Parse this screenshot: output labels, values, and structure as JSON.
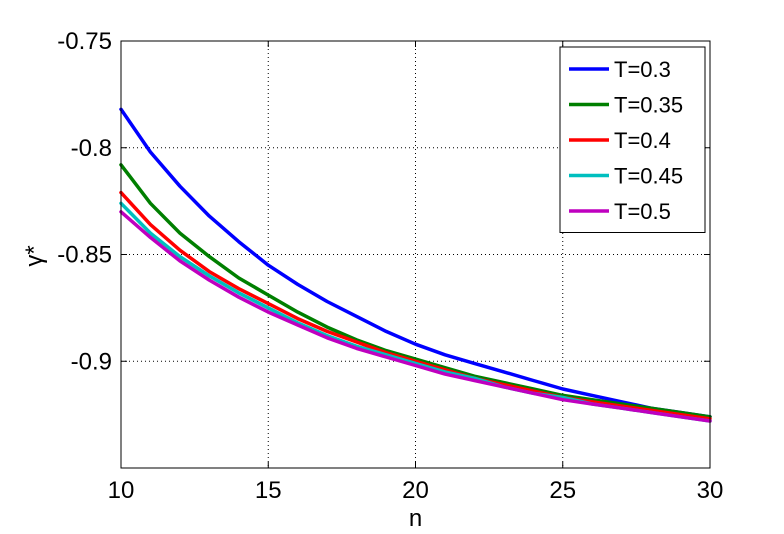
{
  "chart_data": {
    "type": "line",
    "xlabel": "n",
    "ylabel": "γ*",
    "xlim": [
      10,
      30
    ],
    "ylim": [
      -0.95,
      -0.75
    ],
    "x_ticks": [
      10,
      15,
      20,
      25,
      30
    ],
    "y_ticks": [
      -0.9,
      -0.85,
      -0.8,
      -0.75
    ],
    "x_tick_labels": [
      "10",
      "15",
      "20",
      "25",
      "30"
    ],
    "y_tick_labels": [
      "-0.9",
      "-0.85",
      "-0.8",
      "-0.75"
    ],
    "grid": true,
    "legend_position": "top-right",
    "x": [
      10,
      11,
      12,
      13,
      14,
      15,
      16,
      17,
      18,
      19,
      20,
      21,
      22,
      23,
      24,
      25,
      26,
      27,
      28,
      29,
      30
    ],
    "series": [
      {
        "name": "T=0.3",
        "color": "#0000ff",
        "values": [
          -0.782,
          -0.802,
          -0.818,
          -0.832,
          -0.844,
          -0.855,
          -0.864,
          -0.872,
          -0.879,
          -0.886,
          -0.892,
          -0.897,
          -0.901,
          -0.905,
          -0.909,
          -0.913,
          -0.916,
          -0.919,
          -0.922,
          -0.924,
          -0.926
        ]
      },
      {
        "name": "T=0.35",
        "color": "#007f00",
        "values": [
          -0.808,
          -0.826,
          -0.84,
          -0.851,
          -0.861,
          -0.869,
          -0.877,
          -0.884,
          -0.89,
          -0.895,
          -0.899,
          -0.903,
          -0.907,
          -0.91,
          -0.913,
          -0.916,
          -0.918,
          -0.92,
          -0.922,
          -0.924,
          -0.926
        ]
      },
      {
        "name": "T=0.4",
        "color": "#ff0000",
        "values": [
          -0.821,
          -0.836,
          -0.848,
          -0.858,
          -0.866,
          -0.873,
          -0.88,
          -0.886,
          -0.891,
          -0.896,
          -0.9,
          -0.904,
          -0.908,
          -0.911,
          -0.914,
          -0.917,
          -0.919,
          -0.921,
          -0.923,
          -0.925,
          -0.927
        ]
      },
      {
        "name": "T=0.45",
        "color": "#00bfbf",
        "values": [
          -0.826,
          -0.84,
          -0.851,
          -0.86,
          -0.868,
          -0.875,
          -0.882,
          -0.888,
          -0.893,
          -0.897,
          -0.901,
          -0.905,
          -0.908,
          -0.912,
          -0.915,
          -0.917,
          -0.92,
          -0.922,
          -0.924,
          -0.926,
          -0.928
        ]
      },
      {
        "name": "T=0.5",
        "color": "#bf00bf",
        "values": [
          -0.83,
          -0.842,
          -0.853,
          -0.862,
          -0.87,
          -0.877,
          -0.883,
          -0.889,
          -0.894,
          -0.898,
          -0.902,
          -0.906,
          -0.909,
          -0.912,
          -0.915,
          -0.918,
          -0.92,
          -0.922,
          -0.924,
          -0.926,
          -0.928
        ]
      }
    ]
  }
}
